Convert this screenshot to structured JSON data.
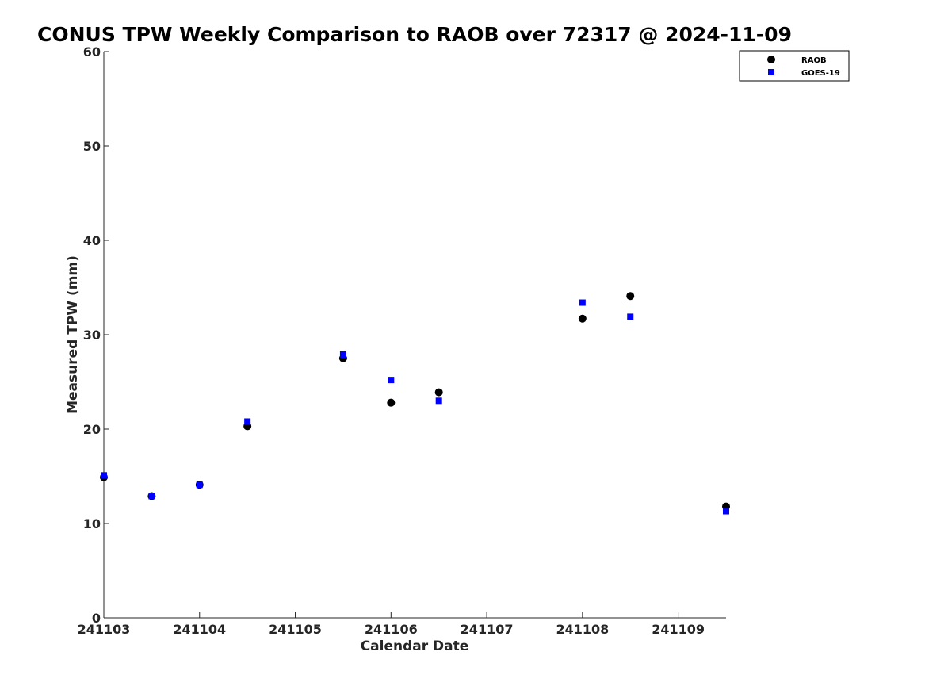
{
  "chart_data": {
    "type": "scatter",
    "title": "CONUS TPW Weekly Comparison to RAOB over 72317 @ 2024-11-09",
    "xlabel": "Calendar Date",
    "ylabel": "Measured TPW (mm)",
    "x_tick_labels": [
      "241103",
      "241104",
      "241105",
      "241106",
      "241107",
      "241108",
      "241109"
    ],
    "xlim": [
      "2024-11-03T00:00",
      "2024-11-09T12:00"
    ],
    "ylim": [
      0,
      60
    ],
    "y_ticks": [
      0,
      10,
      20,
      30,
      40,
      50,
      60
    ],
    "grid": false,
    "legend_position": "top-right",
    "series": [
      {
        "name": "RAOB",
        "marker": "circle",
        "color": "#000000",
        "points": [
          {
            "x": "2024-11-03T00:00",
            "y": 14.9
          },
          {
            "x": "2024-11-03T12:00",
            "y": 12.9
          },
          {
            "x": "2024-11-04T00:00",
            "y": 14.1
          },
          {
            "x": "2024-11-04T12:00",
            "y": 20.3
          },
          {
            "x": "2024-11-05T12:00",
            "y": 27.5
          },
          {
            "x": "2024-11-06T00:00",
            "y": 22.8
          },
          {
            "x": "2024-11-06T12:00",
            "y": 23.9
          },
          {
            "x": "2024-11-08T00:00",
            "y": 31.7
          },
          {
            "x": "2024-11-08T12:00",
            "y": 34.1
          },
          {
            "x": "2024-11-09T12:00",
            "y": 11.8
          }
        ]
      },
      {
        "name": "GOES-19",
        "marker": "square",
        "color": "#0000ff",
        "points": [
          {
            "x": "2024-11-03T00:00",
            "y": 15.1
          },
          {
            "x": "2024-11-03T12:00",
            "y": 12.9
          },
          {
            "x": "2024-11-04T00:00",
            "y": 14.1
          },
          {
            "x": "2024-11-04T12:00",
            "y": 20.8
          },
          {
            "x": "2024-11-05T12:00",
            "y": 27.9
          },
          {
            "x": "2024-11-06T00:00",
            "y": 25.2
          },
          {
            "x": "2024-11-06T12:00",
            "y": 23.0
          },
          {
            "x": "2024-11-08T00:00",
            "y": 33.4
          },
          {
            "x": "2024-11-08T12:00",
            "y": 31.9
          },
          {
            "x": "2024-11-09T12:00",
            "y": 11.3
          }
        ]
      }
    ]
  }
}
